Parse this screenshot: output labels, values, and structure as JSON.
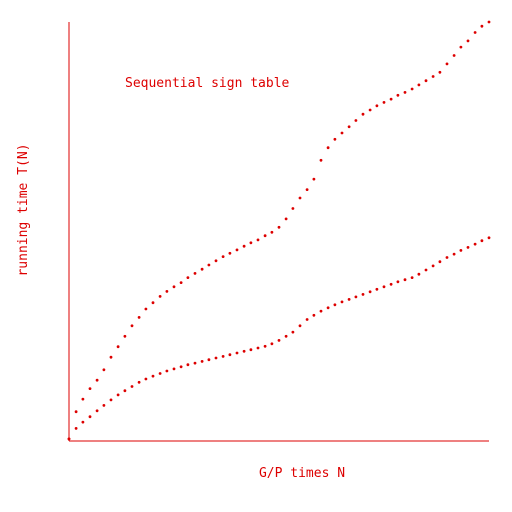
{
  "chart_data": {
    "type": "scatter",
    "title": "",
    "annotation": "Sequential sign table",
    "xlabel": "G/P times N",
    "ylabel": "running time T(N)",
    "xlim": [
      0,
      1
    ],
    "ylim": [
      0,
      1
    ],
    "grid": false,
    "legend": "none",
    "color": "#dd0000",
    "series": [
      {
        "x": [
          0.0,
          0.017,
          0.033,
          0.05,
          0.067,
          0.083,
          0.1,
          0.117,
          0.133,
          0.15,
          0.167,
          0.183,
          0.2,
          0.217,
          0.233,
          0.25,
          0.267,
          0.283,
          0.3,
          0.317,
          0.333,
          0.35,
          0.367,
          0.383,
          0.4,
          0.417,
          0.433,
          0.45,
          0.467,
          0.483,
          0.5,
          0.517,
          0.533,
          0.55,
          0.567,
          0.583,
          0.6,
          0.617,
          0.633,
          0.65,
          0.667,
          0.683,
          0.7,
          0.717,
          0.733,
          0.75,
          0.767,
          0.783,
          0.8,
          0.817,
          0.833,
          0.85,
          0.867,
          0.883,
          0.9,
          0.917,
          0.933,
          0.95,
          0.967,
          0.983,
          1.0
        ],
        "y": [
          0.005,
          0.07,
          0.1,
          0.125,
          0.145,
          0.17,
          0.2,
          0.225,
          0.25,
          0.275,
          0.295,
          0.315,
          0.33,
          0.345,
          0.357,
          0.368,
          0.378,
          0.39,
          0.4,
          0.41,
          0.42,
          0.43,
          0.44,
          0.448,
          0.456,
          0.465,
          0.473,
          0.48,
          0.49,
          0.498,
          0.51,
          0.53,
          0.555,
          0.58,
          0.6,
          0.625,
          0.67,
          0.7,
          0.72,
          0.735,
          0.75,
          0.765,
          0.78,
          0.79,
          0.8,
          0.808,
          0.816,
          0.825,
          0.832,
          0.84,
          0.85,
          0.86,
          0.87,
          0.88,
          0.9,
          0.92,
          0.94,
          0.955,
          0.975,
          0.99,
          1.0
        ]
      },
      {
        "x": [
          0.0,
          0.017,
          0.033,
          0.05,
          0.067,
          0.083,
          0.1,
          0.117,
          0.133,
          0.15,
          0.167,
          0.183,
          0.2,
          0.217,
          0.233,
          0.25,
          0.267,
          0.283,
          0.3,
          0.317,
          0.333,
          0.35,
          0.367,
          0.383,
          0.4,
          0.417,
          0.433,
          0.45,
          0.467,
          0.483,
          0.5,
          0.517,
          0.533,
          0.55,
          0.567,
          0.583,
          0.6,
          0.617,
          0.633,
          0.65,
          0.667,
          0.683,
          0.7,
          0.717,
          0.733,
          0.75,
          0.767,
          0.783,
          0.8,
          0.817,
          0.833,
          0.85,
          0.867,
          0.883,
          0.9,
          0.917,
          0.933,
          0.95,
          0.967,
          0.983,
          1.0
        ],
        "y": [
          0.005,
          0.03,
          0.045,
          0.058,
          0.072,
          0.085,
          0.098,
          0.11,
          0.12,
          0.13,
          0.14,
          0.148,
          0.155,
          0.161,
          0.167,
          0.172,
          0.177,
          0.182,
          0.186,
          0.19,
          0.194,
          0.198,
          0.202,
          0.206,
          0.21,
          0.214,
          0.218,
          0.222,
          0.226,
          0.232,
          0.24,
          0.25,
          0.26,
          0.275,
          0.29,
          0.3,
          0.31,
          0.318,
          0.325,
          0.332,
          0.338,
          0.344,
          0.35,
          0.356,
          0.362,
          0.368,
          0.374,
          0.38,
          0.385,
          0.39,
          0.398,
          0.408,
          0.418,
          0.428,
          0.438,
          0.446,
          0.455,
          0.462,
          0.47,
          0.478,
          0.485
        ]
      }
    ]
  }
}
